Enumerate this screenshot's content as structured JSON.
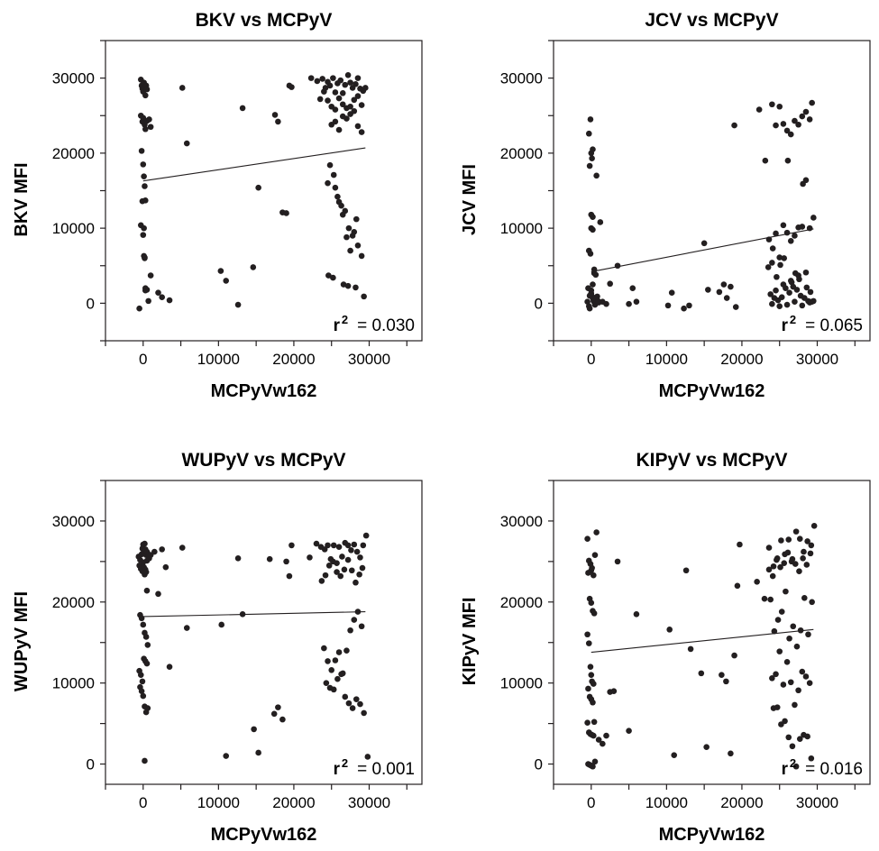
{
  "figure": {
    "point_color": "#231f20",
    "line_color": "#231f20",
    "frame_color": "#231f20"
  },
  "chart_data": [
    {
      "type": "scatter",
      "title": "BKV vs MCPyV",
      "xlabel": "MCPyVw162",
      "ylabel": "BKV MFI",
      "xlim": [
        -5000,
        37000
      ],
      "ylim": [
        -5000,
        35000
      ],
      "x_ticks": [
        0,
        10000,
        20000,
        30000
      ],
      "y_ticks": [
        0,
        10000,
        20000,
        30000
      ],
      "grid": false,
      "r2_label": "r",
      "r2_sup": "2",
      "r2_value": "= 0.030",
      "fit_line": {
        "x": [
          0,
          29500
        ],
        "y": [
          16300,
          20700
        ]
      },
      "points": {
        "x": [
          -500,
          -300,
          -200,
          -100,
          0,
          100,
          200,
          300,
          400,
          500,
          -300,
          -100,
          0,
          200,
          300,
          500,
          800,
          1000,
          -200,
          0,
          100,
          200,
          300,
          -300,
          0,
          100,
          200,
          300,
          500,
          700,
          -100,
          100,
          200,
          300,
          1000,
          2000,
          2500,
          3500,
          5200,
          5800,
          10300,
          11000,
          12600,
          13200,
          14600,
          15300,
          17500,
          17900,
          18500,
          19000,
          19400,
          19700,
          22300,
          23100,
          23800,
          24200,
          24500,
          24800,
          25200,
          25500,
          25800,
          26200,
          26500,
          26800,
          27200,
          27500,
          27800,
          28200,
          28500,
          28800,
          29200,
          29500,
          23500,
          24000,
          24500,
          25000,
          25500,
          26000,
          26500,
          27000,
          27500,
          28000,
          28500,
          29000,
          25000,
          25500,
          26000,
          26500,
          27000,
          27500,
          28000,
          28500,
          29000,
          24800,
          25300,
          25800,
          26300,
          26800,
          27300,
          27800,
          28300,
          24500,
          25500,
          26000,
          26500,
          27000,
          27500,
          28000,
          28500,
          29000,
          24600,
          25200,
          26600,
          27200,
          28200,
          29300
        ],
        "y": [
          -700,
          29800,
          29000,
          28600,
          28200,
          29400,
          28800,
          27700,
          29000,
          28500,
          25000,
          24200,
          24700,
          23800,
          23200,
          24300,
          24500,
          23500,
          20300,
          18500,
          16900,
          15600,
          13700,
          10400,
          9100,
          6300,
          6100,
          1700,
          1800,
          300,
          13600,
          10000,
          6000,
          2000,
          3700,
          1400,
          800,
          400,
          28700,
          21300,
          4300,
          3000,
          -200,
          26000,
          4800,
          15400,
          25100,
          24200,
          12100,
          12000,
          29000,
          28800,
          30000,
          29600,
          29900,
          28700,
          29500,
          29000,
          30000,
          28100,
          29300,
          29700,
          28000,
          29100,
          30400,
          29400,
          28700,
          29200,
          30000,
          28600,
          28300,
          28700,
          27200,
          28200,
          27000,
          26200,
          25800,
          27300,
          26500,
          26000,
          25200,
          27100,
          27600,
          26400,
          23800,
          24200,
          23100,
          24900,
          24600,
          26200,
          25600,
          23600,
          22800,
          18400,
          17100,
          14200,
          13000,
          12300,
          10000,
          9000,
          11200,
          16000,
          15400,
          13500,
          11800,
          8800,
          7000,
          9500,
          7700,
          6300,
          3700,
          3400,
          2500,
          2300,
          2100,
          900
        ]
      }
    },
    {
      "type": "scatter",
      "title": "JCV vs MCPyV",
      "xlabel": "MCPyVw162",
      "ylabel": "JCV MFI",
      "xlim": [
        -5000,
        37000
      ],
      "ylim": [
        -5000,
        35000
      ],
      "x_ticks": [
        0,
        10000,
        20000,
        30000
      ],
      "y_ticks": [
        0,
        10000,
        20000,
        30000
      ],
      "grid": false,
      "r2_label": "r",
      "r2_sup": "2",
      "r2_value": "= 0.065",
      "fit_line": {
        "x": [
          0,
          29500
        ],
        "y": [
          4200,
          9900
        ]
      },
      "points": {
        "x": [
          -300,
          -100,
          0,
          100,
          200,
          -200,
          0,
          200,
          700,
          -300,
          -100,
          0,
          200,
          400,
          600,
          -500,
          -300,
          -200,
          -100,
          0,
          100,
          200,
          300,
          400,
          500,
          600,
          700,
          800,
          1000,
          -400,
          -200,
          0,
          200,
          400,
          600,
          900,
          1200,
          1500,
          2000,
          2500,
          3500,
          5000,
          5500,
          6000,
          10200,
          10700,
          12300,
          13000,
          15000,
          15500,
          17000,
          17600,
          18000,
          18500,
          19000,
          19200,
          22300,
          23100,
          24000,
          24500,
          25000,
          25500,
          26000,
          26500,
          27000,
          27500,
          28000,
          28500,
          29000,
          29300,
          23500,
          24000,
          24500,
          25000,
          25500,
          26000,
          26500,
          27000,
          27500,
          28000,
          28500,
          29000,
          29500,
          23600,
          24100,
          24600,
          25100,
          25600,
          26100,
          26600,
          27100,
          27600,
          28100,
          28600,
          29100,
          23800,
          24300,
          24800,
          25300,
          25800,
          26300,
          26800,
          27300,
          27800,
          28300,
          28800,
          29300,
          24000,
          25000,
          26000,
          27000,
          28000,
          29000,
          24500,
          25500,
          26500,
          27500,
          28500,
          29500
        ],
        "y": [
          22600,
          24500,
          20000,
          19300,
          20500,
          18300,
          11800,
          11500,
          17000,
          7000,
          6600,
          10000,
          9800,
          4500,
          3800,
          200,
          -400,
          -700,
          1100,
          1700,
          900,
          700,
          300,
          200,
          -200,
          600,
          400,
          900,
          100,
          2000,
          1000,
          1300,
          2500,
          4000,
          500,
          300,
          10800,
          200,
          -100,
          2600,
          5000,
          -100,
          2000,
          200,
          -300,
          1400,
          -700,
          -300,
          8000,
          1800,
          1500,
          2500,
          700,
          2200,
          23700,
          -500,
          25800,
          19000,
          26500,
          23700,
          26200,
          23900,
          23000,
          22500,
          24300,
          23800,
          24900,
          25500,
          24500,
          26700,
          4800,
          5400,
          9300,
          6100,
          10400,
          9400,
          8300,
          9000,
          10100,
          10200,
          16400,
          10000,
          11400,
          8500,
          7300,
          3500,
          5100,
          6000,
          19000,
          2800,
          4000,
          3200,
          15900,
          2100,
          1500,
          1200,
          700,
          400,
          800,
          2000,
          1400,
          2200,
          1800,
          1000,
          700,
          300,
          200,
          -100,
          -400,
          -200,
          200,
          -300,
          100,
          1700,
          2500,
          3000,
          3700,
          4100,
          300
        ]
      }
    },
    {
      "type": "scatter",
      "title": "WUPyV vs MCPyV",
      "xlabel": "MCPyVw162",
      "ylabel": "WUPyV MFI",
      "xlim": [
        -5000,
        37000
      ],
      "ylim": [
        -2500,
        35000
      ],
      "x_ticks": [
        0,
        10000,
        20000,
        30000
      ],
      "y_ticks": [
        0,
        10000,
        20000,
        30000
      ],
      "grid": false,
      "r2_label": "r",
      "r2_sup": "2",
      "r2_value": "= 0.001",
      "fit_line": {
        "x": [
          0,
          29500
        ],
        "y": [
          18200,
          18800
        ]
      },
      "points": {
        "x": [
          -600,
          -400,
          -200,
          -100,
          0,
          100,
          200,
          300,
          400,
          500,
          600,
          700,
          800,
          -500,
          -300,
          -100,
          0,
          100,
          200,
          300,
          400,
          500,
          -400,
          -200,
          0,
          200,
          400,
          600,
          -500,
          -300,
          -100,
          100,
          300,
          500,
          -400,
          -200,
          0,
          200,
          400,
          600,
          200,
          500,
          1000,
          1500,
          2000,
          2500,
          3000,
          3500,
          5200,
          5800,
          10400,
          11000,
          12600,
          13200,
          14700,
          15300,
          16800,
          17400,
          17900,
          18500,
          19000,
          19400,
          19700,
          22100,
          23000,
          23600,
          24100,
          24500,
          24900,
          25300,
          25700,
          26000,
          26400,
          26800,
          27200,
          27600,
          28000,
          28400,
          28800,
          29200,
          29600,
          23700,
          24200,
          24700,
          25200,
          25700,
          26200,
          26700,
          27200,
          27700,
          28200,
          28700,
          29100,
          24000,
          24500,
          25000,
          25500,
          26000,
          26500,
          27000,
          27500,
          28000,
          28500,
          29000,
          24300,
          24800,
          25300,
          25800,
          26300,
          26800,
          27300,
          27800,
          28300,
          28800,
          29300,
          29800
        ],
        "y": [
          25600,
          25200,
          25900,
          26600,
          27100,
          26200,
          27200,
          26500,
          25800,
          25100,
          26000,
          25700,
          25400,
          24500,
          24100,
          23800,
          24900,
          24300,
          23400,
          24000,
          23700,
          21400,
          18400,
          18000,
          17200,
          16200,
          15700,
          14700,
          11500,
          11000,
          10200,
          13000,
          12700,
          12400,
          9500,
          9000,
          8400,
          7100,
          6400,
          6900,
          400,
          26200,
          25800,
          26200,
          21000,
          26500,
          24300,
          12000,
          26700,
          16800,
          17200,
          1000,
          25400,
          18500,
          4300,
          1400,
          25300,
          6200,
          7000,
          5500,
          25000,
          23200,
          27000,
          25500,
          27200,
          26800,
          26500,
          27000,
          25300,
          27000,
          24800,
          26800,
          25600,
          27300,
          27000,
          26400,
          27100,
          26200,
          25500,
          27000,
          28200,
          22600,
          23300,
          24500,
          25000,
          23700,
          23200,
          24000,
          25200,
          23900,
          22400,
          23400,
          24200,
          14300,
          12700,
          11600,
          12800,
          13800,
          11200,
          14000,
          16500,
          17800,
          18800,
          17000,
          10000,
          9400,
          9200,
          10500,
          11100,
          8300,
          7500,
          6900,
          8000,
          7400,
          6300,
          900
        ]
      }
    },
    {
      "type": "scatter",
      "title": "KIPyV vs MCPyV",
      "xlabel": "MCPyVw162",
      "ylabel": "KIPyV MFI",
      "xlim": [
        -5000,
        37000
      ],
      "ylim": [
        -2500,
        35000
      ],
      "x_ticks": [
        0,
        10000,
        20000,
        30000
      ],
      "y_ticks": [
        0,
        10000,
        20000,
        30000
      ],
      "grid": false,
      "r2_label": "r",
      "r2_sup": "2",
      "r2_value": "= 0.016",
      "fit_line": {
        "x": [
          0,
          29500
        ],
        "y": [
          13800,
          16600
        ]
      },
      "points": {
        "x": [
          -500,
          -300,
          -100,
          0,
          100,
          300,
          500,
          700,
          -400,
          -200,
          0,
          200,
          400,
          -500,
          -300,
          -100,
          0,
          100,
          300,
          -400,
          -200,
          0,
          200,
          400,
          -500,
          -300,
          -100,
          100,
          300,
          500,
          -400,
          -200,
          0,
          200,
          1000,
          1500,
          2000,
          2500,
          3000,
          3500,
          5000,
          6000,
          10400,
          11000,
          12600,
          13200,
          14600,
          15300,
          17300,
          17900,
          18500,
          19000,
          19400,
          19700,
          22000,
          23000,
          23600,
          24200,
          24700,
          25200,
          25700,
          26200,
          26700,
          27200,
          27700,
          28200,
          28700,
          29200,
          29600,
          23600,
          24100,
          24600,
          25100,
          25600,
          26100,
          26600,
          27100,
          27600,
          28100,
          28600,
          29100,
          23800,
          24300,
          24800,
          25300,
          25800,
          26300,
          26800,
          27300,
          27800,
          28300,
          28800,
          29300,
          24000,
          24500,
          25000,
          25500,
          26000,
          26500,
          27000,
          27500,
          28000,
          28500,
          29000,
          24200,
          24700,
          25200,
          25700,
          26200,
          26700,
          27200,
          27700,
          28200,
          28700,
          29200
        ],
        "y": [
          27800,
          25100,
          24700,
          23900,
          24200,
          23300,
          25800,
          28600,
          23600,
          20400,
          19900,
          18900,
          18600,
          16000,
          14900,
          12000,
          11000,
          10200,
          9900,
          9300,
          8300,
          8000,
          7600,
          5200,
          5100,
          3900,
          3700,
          3600,
          3500,
          300,
          0,
          -100,
          -200,
          -300,
          3000,
          2500,
          3500,
          8900,
          9000,
          25000,
          4100,
          18500,
          16600,
          1100,
          23900,
          14200,
          11200,
          2100,
          11000,
          10200,
          1300,
          13400,
          22000,
          27100,
          22500,
          20400,
          26700,
          24400,
          25400,
          27600,
          25900,
          27700,
          25300,
          28700,
          27800,
          26200,
          27500,
          27000,
          29400,
          24000,
          23200,
          25200,
          24300,
          24800,
          26100,
          25000,
          24700,
          23800,
          25400,
          24600,
          26000,
          20300,
          16400,
          17800,
          18800,
          21300,
          15500,
          17000,
          14500,
          16500,
          20500,
          16000,
          20000,
          10600,
          11100,
          13900,
          9800,
          12600,
          10100,
          7300,
          9100,
          11400,
          10800,
          10000,
          6900,
          7000,
          4900,
          5300,
          3300,
          2200,
          -300,
          3100,
          3600,
          3400,
          700
        ]
      }
    }
  ]
}
